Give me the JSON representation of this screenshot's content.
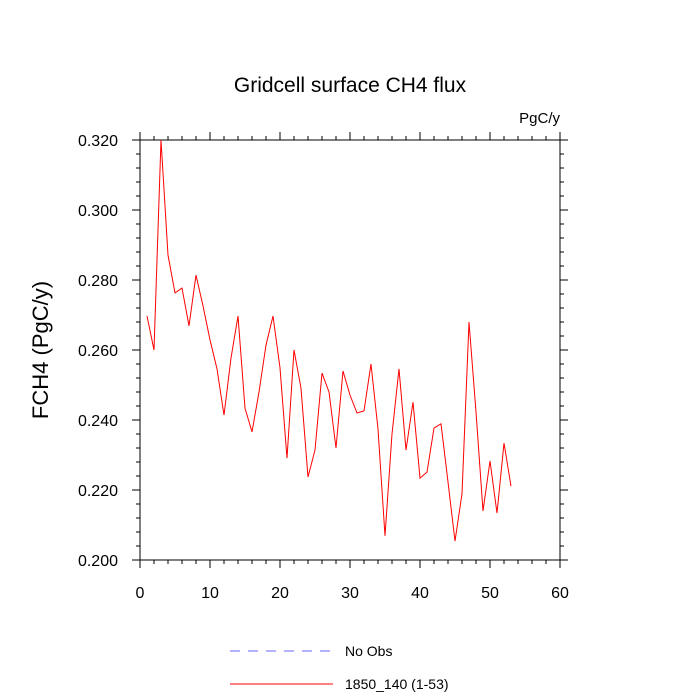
{
  "chart_data": {
    "type": "line",
    "title": "Gridcell surface CH4 flux",
    "units": "PgC/y",
    "ylabel": "FCH4  (PgC/y)",
    "xlabel": "",
    "xlim": [
      0,
      60
    ],
    "ylim": [
      0.2,
      0.32
    ],
    "xticks": [
      0,
      10,
      20,
      30,
      40,
      50,
      60
    ],
    "xtick_labels": [
      "0",
      "10",
      "20",
      "30",
      "40",
      "50",
      "60"
    ],
    "yticks": [
      0.2,
      0.22,
      0.24,
      0.26,
      0.28,
      0.3,
      0.32
    ],
    "ytick_labels": [
      "0.200",
      "0.220",
      "0.240",
      "0.260",
      "0.280",
      "0.300",
      "0.320"
    ],
    "grid": false,
    "legend": {
      "placement": "bottom"
    },
    "series": [
      {
        "name": "No Obs",
        "color": "#6666ff",
        "style": "dashed",
        "x": [],
        "values": []
      },
      {
        "name": "1850_140 (1-53)",
        "color": "#ff0000",
        "style": "solid",
        "x": [
          1,
          2,
          3,
          4,
          5,
          6,
          7,
          8,
          9,
          10,
          11,
          12,
          13,
          14,
          15,
          16,
          17,
          18,
          19,
          20,
          21,
          22,
          23,
          24,
          25,
          26,
          27,
          28,
          29,
          30,
          31,
          32,
          33,
          34,
          35,
          36,
          37,
          38,
          39,
          40,
          41,
          42,
          43,
          44,
          45,
          46,
          47,
          48,
          49,
          50,
          51,
          52,
          53
        ],
        "values": [
          0.2697,
          0.26,
          0.32,
          0.2871,
          0.2763,
          0.2777,
          0.2669,
          0.2814,
          0.2726,
          0.2629,
          0.2546,
          0.2414,
          0.2577,
          0.2697,
          0.2434,
          0.2366,
          0.248,
          0.2614,
          0.2697,
          0.2549,
          0.2291,
          0.26,
          0.2491,
          0.2237,
          0.2314,
          0.2534,
          0.248,
          0.232,
          0.254,
          0.2471,
          0.242,
          0.2426,
          0.256,
          0.2374,
          0.2069,
          0.236,
          0.2546,
          0.2314,
          0.2451,
          0.2234,
          0.2251,
          0.2377,
          0.2389,
          0.2223,
          0.2054,
          0.2189,
          0.268,
          0.2423,
          0.214,
          0.2283,
          0.2134,
          0.2334,
          0.2211
        ]
      }
    ]
  }
}
